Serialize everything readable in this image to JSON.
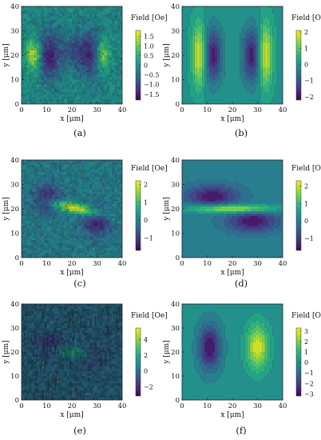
{
  "chart_data": [
    {
      "type": "heatmap",
      "panel_label": "(a)",
      "style": "measured",
      "xlabel": "x [μm]",
      "ylabel": "y [μm]",
      "xlim": [
        0,
        40
      ],
      "ylim": [
        0,
        40
      ],
      "xticks": [
        "0",
        "10",
        "20",
        "30",
        "40"
      ],
      "yticks": [
        "0",
        "10",
        "20",
        "30",
        "40"
      ],
      "colorbar_label": "Field [Oe]",
      "colorbar_range": [
        -1.8,
        1.8
      ],
      "colorbar_ticks": [
        1.5,
        1.0,
        0.5,
        0,
        -0.5,
        -1.0,
        -1.5
      ],
      "colorbar_ticklabels": [
        "1.5",
        "1.0",
        "0.5",
        "0",
        "−0.5",
        "−1.0",
        "−1.5"
      ],
      "features": [
        {
          "x": 5,
          "y": 20,
          "value": 1.6
        },
        {
          "x": 11,
          "y": 20,
          "value": -1.5
        },
        {
          "x": 21,
          "y": 22,
          "value": -0.8
        },
        {
          "x": 28,
          "y": 20,
          "value": -1.4
        },
        {
          "x": 32,
          "y": 20,
          "value": 1.6
        }
      ]
    },
    {
      "type": "heatmap",
      "panel_label": "(b)",
      "style": "contour",
      "xlabel": "x [μm]",
      "ylabel": "y [μm]",
      "xlim": [
        0,
        40
      ],
      "ylim": [
        0,
        40
      ],
      "xticks": [
        "0",
        "10",
        "20",
        "30",
        "40"
      ],
      "yticks": [
        "0",
        "10",
        "20",
        "30",
        "40"
      ],
      "colorbar_label": "Field [Oe]",
      "colorbar_range": [
        -2.2,
        2.1
      ],
      "colorbar_ticks": [
        2,
        1,
        0,
        -1,
        -2
      ],
      "colorbar_ticklabels": [
        "2",
        "1",
        "0",
        "−1",
        "−2"
      ],
      "features": [
        {
          "x": 7,
          "y": 20,
          "value": 2.0
        },
        {
          "x": 12,
          "y": 20,
          "value": -2.0
        },
        {
          "x": 28,
          "y": 20,
          "value": -2.0
        },
        {
          "x": 33,
          "y": 20,
          "value": 2.0
        }
      ]
    },
    {
      "type": "heatmap",
      "panel_label": "(c)",
      "style": "measured",
      "xlabel": "x [μm]",
      "ylabel": "y [μm]",
      "xlim": [
        0,
        40
      ],
      "ylim": [
        0,
        40
      ],
      "xticks": [
        "0",
        "10",
        "20",
        "30",
        "40"
      ],
      "yticks": [
        "0",
        "10",
        "20",
        "30",
        "40"
      ],
      "colorbar_label": "Field [Oe]",
      "colorbar_range": [
        -1.7,
        2.2
      ],
      "colorbar_ticks": [
        2,
        1,
        0,
        -1
      ],
      "colorbar_ticklabels": [
        "2",
        "1",
        "0",
        "−1"
      ],
      "features": [
        {
          "x": 10,
          "y": 24,
          "value": -1.3
        },
        {
          "x": 22,
          "y": 20,
          "value": 2.0
        },
        {
          "x": 30,
          "y": 15,
          "value": -1.4
        }
      ]
    },
    {
      "type": "heatmap",
      "panel_label": "(d)",
      "style": "contour",
      "xlabel": "x [μm]",
      "ylabel": "y [μm]",
      "xlim": [
        0,
        40
      ],
      "ylim": [
        0,
        40
      ],
      "xticks": [
        "0",
        "10",
        "20",
        "30",
        "40"
      ],
      "yticks": [
        "0",
        "10",
        "20",
        "30",
        "40"
      ],
      "colorbar_label": "Field [Oe]",
      "colorbar_range": [
        -1.7,
        2.3
      ],
      "colorbar_ticks": [
        2,
        1,
        0,
        -1
      ],
      "colorbar_ticklabels": [
        "2",
        "1",
        "0",
        "−1"
      ],
      "features": [
        {
          "x": 12,
          "y": 25,
          "value": -1.5
        },
        {
          "x": 20,
          "y": 20,
          "value": 2.2
        },
        {
          "x": 28,
          "y": 15,
          "value": -1.5
        }
      ]
    },
    {
      "type": "heatmap",
      "panel_label": "(e)",
      "style": "measured",
      "xlabel": "x [μm]",
      "ylabel": "y [μm]",
      "xlim": [
        0,
        40
      ],
      "ylim": [
        0,
        40
      ],
      "xticks": [
        "0",
        "10",
        "20",
        "30",
        "40"
      ],
      "yticks": [
        "0",
        "10",
        "20",
        "30",
        "40"
      ],
      "colorbar_label": "Field [Oe]",
      "colorbar_range": [
        -3.2,
        5.5
      ],
      "colorbar_ticks": [
        4,
        2,
        0,
        -2
      ],
      "colorbar_ticklabels": [
        "4",
        "2",
        "0",
        "−2"
      ],
      "features": [
        {
          "x": 11,
          "y": 23,
          "value": -2.0
        },
        {
          "x": 20,
          "y": 20,
          "value": 2.0
        },
        {
          "x": 29,
          "y": 18,
          "value": -1.5
        }
      ]
    },
    {
      "type": "heatmap",
      "panel_label": "(f)",
      "style": "contour",
      "xlabel": "x [μm]",
      "ylabel": "y [μm]",
      "xlim": [
        0,
        40
      ],
      "ylim": [
        0,
        40
      ],
      "xticks": [
        "0",
        "10",
        "20",
        "30",
        "40"
      ],
      "yticks": [
        "0",
        "10",
        "20",
        "30",
        "40"
      ],
      "colorbar_label": "Field [Oe]",
      "colorbar_range": [
        -3.2,
        3.3
      ],
      "colorbar_ticks": [
        3,
        2,
        1,
        0,
        -1,
        -2,
        -3
      ],
      "colorbar_ticklabels": [
        "3",
        "2",
        "1",
        "0",
        "−1",
        "−2",
        "−3"
      ],
      "features": [
        {
          "x": 11,
          "y": 22,
          "value": -3.0
        },
        {
          "x": 30,
          "y": 22,
          "value": 3.0
        }
      ]
    }
  ]
}
